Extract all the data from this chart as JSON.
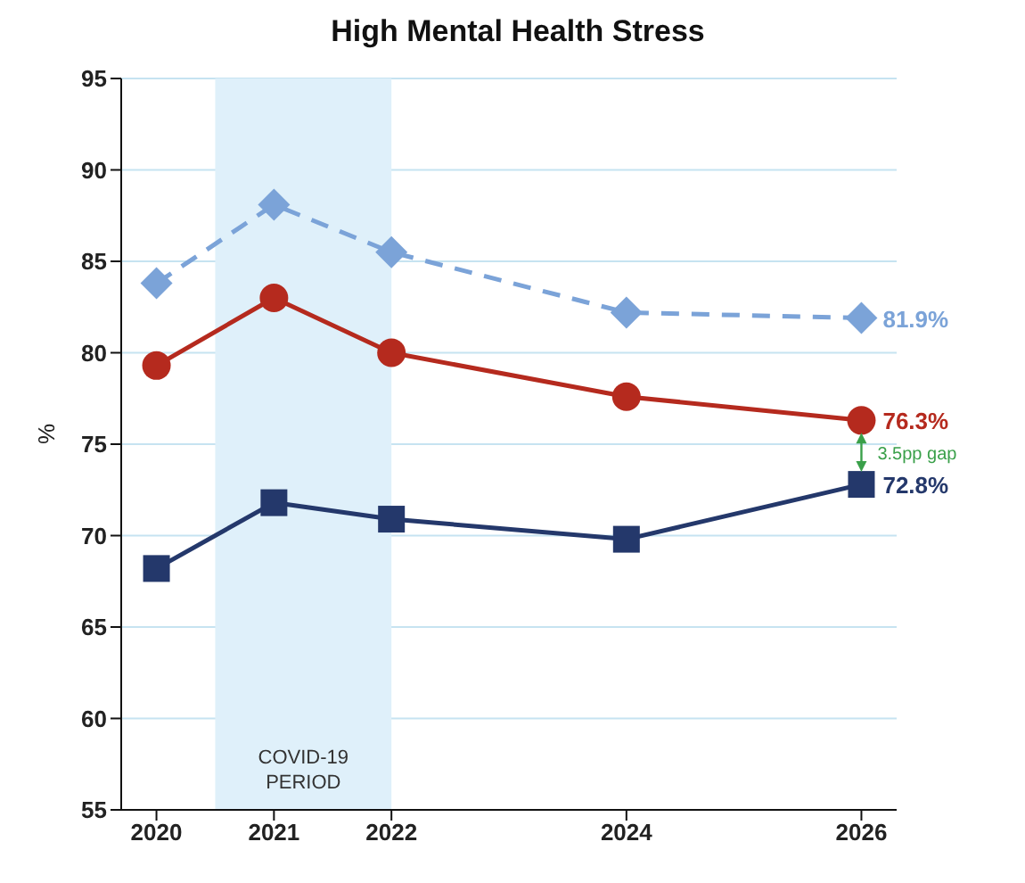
{
  "chart_data": {
    "type": "line",
    "title": "High Mental Health Stress",
    "ylabel": "%",
    "x": [
      2020,
      2021,
      2022,
      2024,
      2026
    ],
    "xlim": [
      2019.7,
      2026.3
    ],
    "xticks": [
      2020,
      2021,
      2022,
      2024,
      2026
    ],
    "ylim": [
      55,
      95
    ],
    "yticks": [
      55,
      60,
      65,
      70,
      75,
      80,
      85,
      90,
      95
    ],
    "grid": "y",
    "series": [
      {
        "color": "#7ba3d8",
        "marker": "diamond",
        "line_style": "dashed",
        "values": [
          83.8,
          88.1,
          85.5,
          82.2,
          81.9
        ],
        "value_labels": [
          null,
          null,
          null,
          null,
          "81.9%"
        ]
      },
      {
        "color": "#b52a1e",
        "marker": "circle",
        "line_style": "solid",
        "values": [
          79.3,
          83.0,
          80.0,
          77.6,
          76.3
        ],
        "value_labels": [
          null,
          null,
          null,
          null,
          "76.3%"
        ]
      },
      {
        "color": "#24386b",
        "marker": "square",
        "line_style": "solid",
        "values": [
          68.2,
          71.8,
          70.9,
          69.8,
          72.8
        ],
        "value_labels": [
          null,
          null,
          null,
          null,
          "72.8%"
        ]
      }
    ],
    "bands": [
      {
        "axis": "x",
        "from": 2020.5,
        "to": 2022,
        "label": "COVID-19 PERIOD",
        "color": "#dff0fa"
      }
    ],
    "annotations": [
      "3.5pp gap"
    ]
  }
}
